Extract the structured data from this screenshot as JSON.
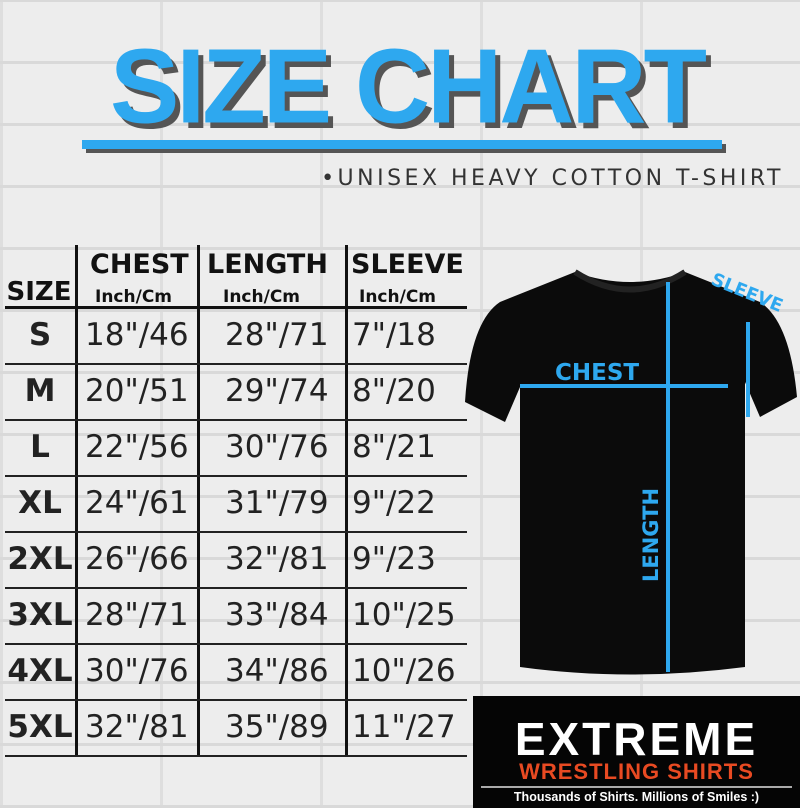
{
  "title": "SIZE CHART",
  "subtitle": "•UNISEX HEAVY COTTON T-SHIRT",
  "accent_color": "#2ea8ef",
  "table": {
    "headers": {
      "size": "SIZE",
      "chest": "CHEST",
      "length": "LENGTH",
      "sleeve": "SLEEVE",
      "unit": "Inch/Cm"
    },
    "rows": [
      {
        "size": "S",
        "chest": "18\"/46",
        "length": "28\"/71",
        "sleeve": "7\"/18"
      },
      {
        "size": "M",
        "chest": "20\"/51",
        "length": "29\"/74",
        "sleeve": "8\"/20"
      },
      {
        "size": "L",
        "chest": "22\"/56",
        "length": "30\"/76",
        "sleeve": "8\"/21"
      },
      {
        "size": "XL",
        "chest": "24\"/61",
        "length": "31\"/79",
        "sleeve": "9\"/22"
      },
      {
        "size": "2XL",
        "chest": "26\"/66",
        "length": "32\"/81",
        "sleeve": "9\"/23"
      },
      {
        "size": "3XL",
        "chest": "28\"/71",
        "length": "33\"/84",
        "sleeve": "10\"/25"
      },
      {
        "size": "4XL",
        "chest": "30\"/76",
        "length": "34\"/86",
        "sleeve": "10\"/26"
      },
      {
        "size": "5XL",
        "chest": "32\"/81",
        "length": "35\"/89",
        "sleeve": "11\"/27"
      }
    ]
  },
  "diagram": {
    "chest": "CHEST",
    "length": "LENGTH",
    "sleeve": "SLEEVE"
  },
  "logo": {
    "line1": "EXTREME",
    "line2": "WRESTLING SHIRTS",
    "tagline": "Thousands of Shirts. Millions of Smiles :)"
  }
}
